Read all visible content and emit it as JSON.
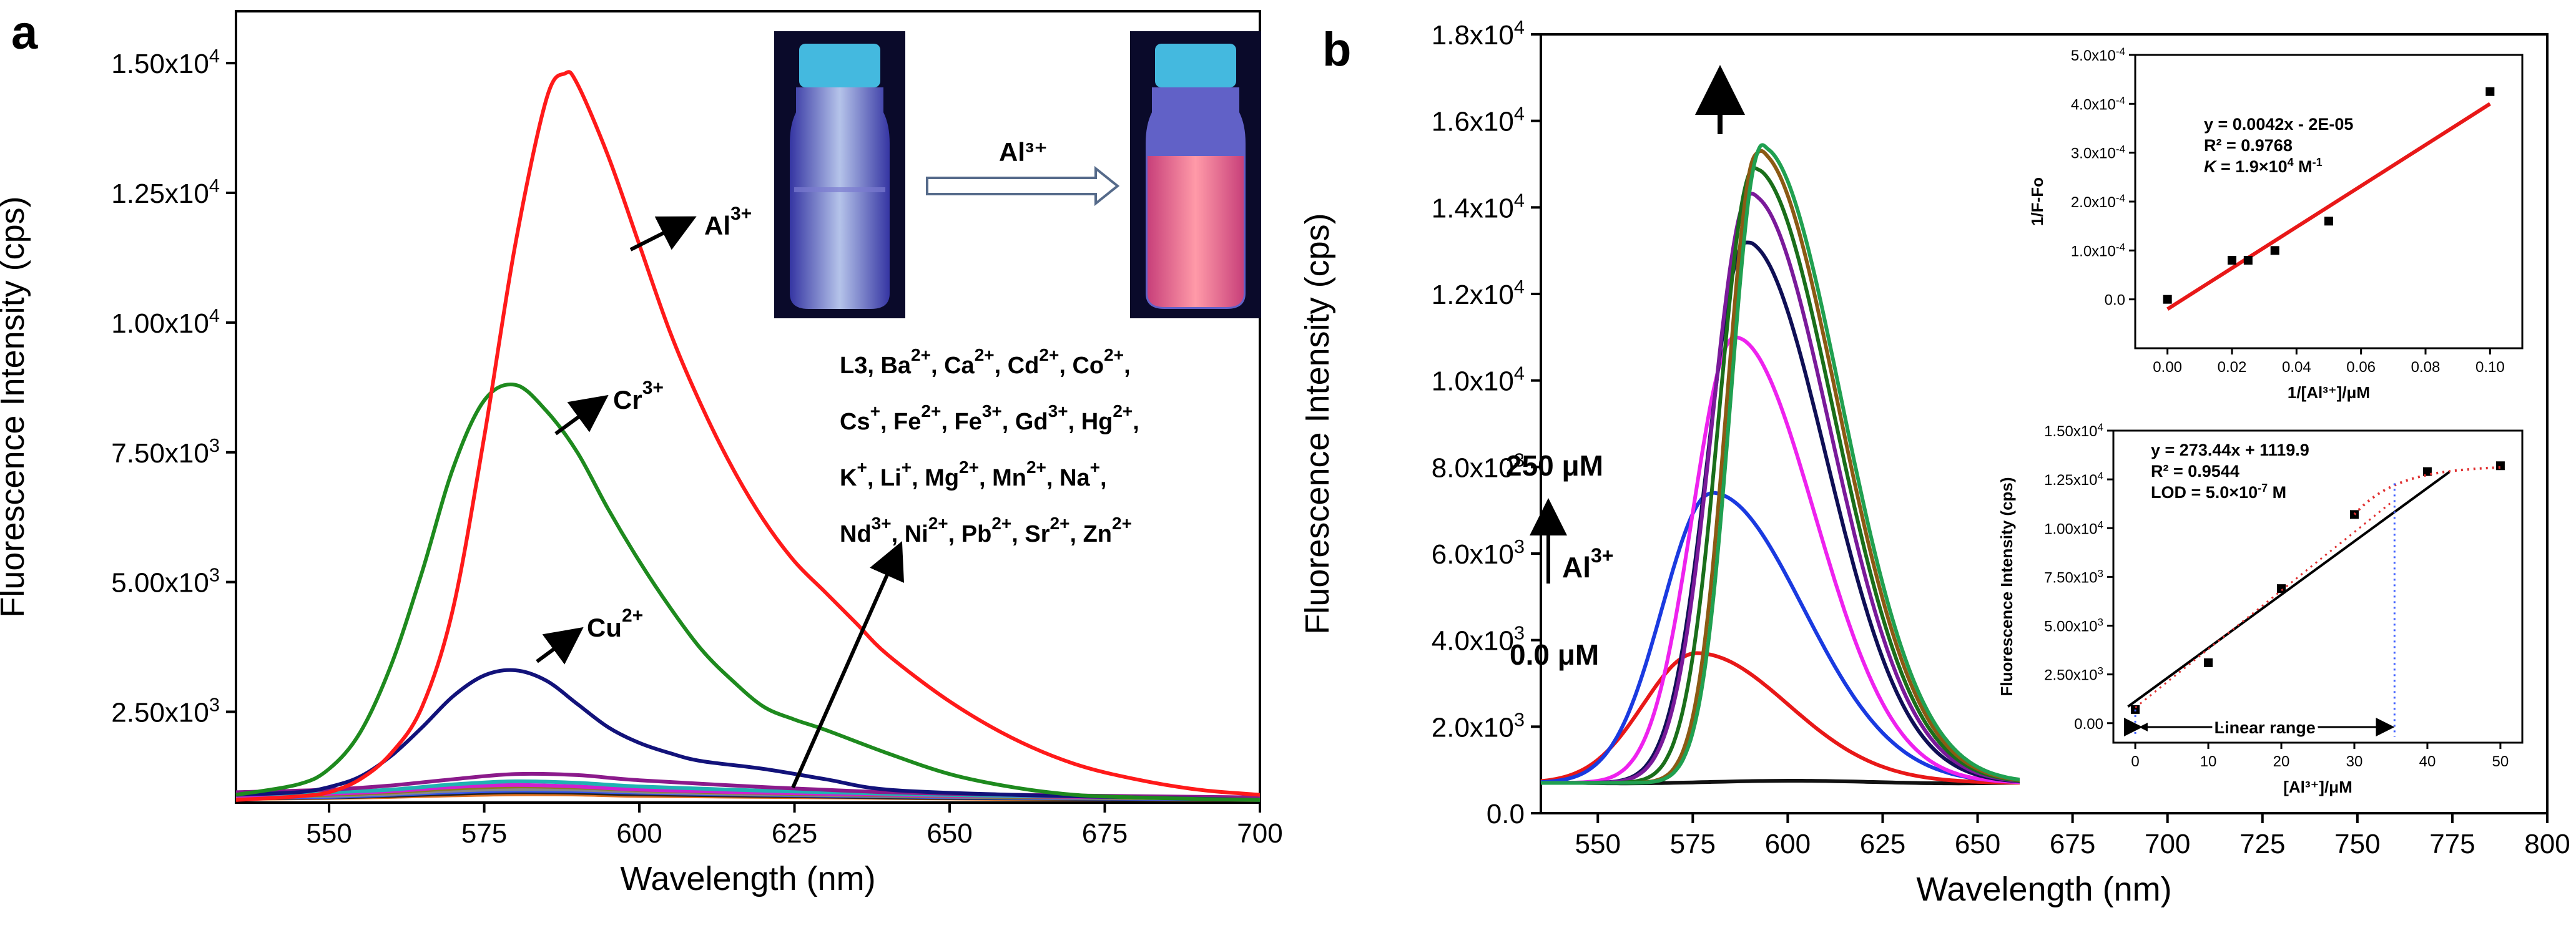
{
  "panel_a": {
    "letter": "a",
    "cuvette_label": "Al³⁺",
    "curve_labels": [
      {
        "ion": "Al",
        "charge": "3+"
      },
      {
        "ion": "Cr",
        "charge": "3+"
      },
      {
        "ion": "Cu",
        "charge": "2+"
      }
    ],
    "ion_list": [
      [
        [
          "L3, Ba",
          ""
        ],
        [
          "2+",
          ""
        ],
        [
          ", Ca",
          ""
        ],
        [
          "2+",
          ""
        ],
        [
          ", Cd",
          ""
        ],
        [
          "2+",
          ""
        ],
        [
          ", Co",
          ""
        ],
        [
          "2+",
          ""
        ],
        [
          ",",
          ""
        ]
      ],
      [
        [
          "Cs",
          ""
        ],
        [
          "+",
          ""
        ],
        [
          ", Fe",
          ""
        ],
        [
          "2+",
          ""
        ],
        [
          ", Fe",
          ""
        ],
        [
          "3+",
          ""
        ],
        [
          ", Gd",
          ""
        ],
        [
          "3+",
          ""
        ],
        [
          ", Hg",
          ""
        ],
        [
          "2+",
          ""
        ],
        [
          ",",
          ""
        ]
      ],
      [
        [
          "K",
          ""
        ],
        [
          "+",
          ""
        ],
        [
          ", Li",
          ""
        ],
        [
          "+",
          ""
        ],
        [
          ", Mg",
          ""
        ],
        [
          "2+",
          ""
        ],
        [
          ", Mn",
          ""
        ],
        [
          "2+",
          ""
        ],
        [
          ", Na",
          ""
        ],
        [
          "+",
          ""
        ],
        [
          ",",
          ""
        ]
      ],
      [
        [
          "Nd",
          ""
        ],
        [
          "3+",
          ""
        ],
        [
          ", Ni",
          ""
        ],
        [
          "2+",
          ""
        ],
        [
          ", Pb",
          ""
        ],
        [
          "2+",
          ""
        ],
        [
          ", Sr",
          ""
        ],
        [
          "2+",
          ""
        ],
        [
          ", Zn",
          ""
        ],
        [
          "2+",
          ""
        ]
      ]
    ]
  },
  "panel_b": {
    "letter": "b",
    "label_high": "250 μM",
    "label_low": "0.0 μM",
    "label_ion": "Al",
    "label_ion_charge": "3+"
  },
  "chart_data": [
    {
      "type": "line",
      "id": "panel-a",
      "title": "",
      "xlabel": "Wavelength (nm)",
      "ylabel": "Fluorescence Intensity (cps)",
      "xlim": [
        535,
        700
      ],
      "ylim": [
        750,
        16000
      ],
      "xticks": [
        550,
        575,
        600,
        625,
        650,
        675,
        700
      ],
      "yticks": [
        {
          "value": 2500,
          "label": "2.50x10",
          "exp": "3"
        },
        {
          "value": 5000,
          "label": "5.00x10",
          "exp": "3"
        },
        {
          "value": 7500,
          "label": "7.50x10",
          "exp": "3"
        },
        {
          "value": 10000,
          "label": "1.00x10",
          "exp": "4"
        },
        {
          "value": 12500,
          "label": "1.25x10",
          "exp": "4"
        },
        {
          "value": 15000,
          "label": "1.50x10",
          "exp": "4"
        }
      ],
      "series": [
        {
          "name": "Al3+",
          "color": "#ff1a1a",
          "x": [
            535,
            545,
            550,
            555,
            560,
            565,
            570,
            575,
            580,
            585,
            588,
            590,
            595,
            600,
            605,
            610,
            615,
            620,
            625,
            630,
            635,
            640,
            650,
            660,
            670,
            680,
            690,
            700
          ],
          "y": [
            800,
            870,
            950,
            1200,
            1700,
            2600,
            4500,
            7800,
            11500,
            14300,
            14800,
            14600,
            13200,
            11500,
            9800,
            8400,
            7200,
            6200,
            5400,
            4800,
            4200,
            3600,
            2700,
            2000,
            1500,
            1200,
            1000,
            900
          ]
        },
        {
          "name": "Cr3+",
          "color": "#1e8a1e",
          "x": [
            535,
            545,
            550,
            555,
            560,
            565,
            570,
            575,
            580,
            585,
            590,
            595,
            600,
            605,
            610,
            615,
            620,
            625,
            630,
            640,
            650,
            660,
            670,
            680,
            690,
            700
          ],
          "y": [
            900,
            1100,
            1400,
            2100,
            3400,
            5200,
            7200,
            8500,
            8800,
            8300,
            7500,
            6400,
            5400,
            4500,
            3700,
            3100,
            2600,
            2350,
            2150,
            1700,
            1300,
            1050,
            900,
            850,
            820,
            800
          ]
        },
        {
          "name": "Cu2+",
          "color": "#12127a",
          "x": [
            535,
            545,
            550,
            555,
            560,
            565,
            570,
            575,
            580,
            585,
            590,
            595,
            600,
            605,
            610,
            620,
            630,
            640,
            660,
            680,
            700
          ],
          "y": [
            900,
            950,
            1050,
            1250,
            1650,
            2200,
            2800,
            3200,
            3300,
            3100,
            2650,
            2200,
            1900,
            1700,
            1550,
            1400,
            1200,
            1000,
            900,
            850,
            800
          ]
        },
        {
          "name": "Purple",
          "color": "#8b1a8b",
          "x": [
            535,
            550,
            560,
            570,
            580,
            590,
            600,
            620,
            640,
            660,
            700
          ],
          "y": [
            950,
            1000,
            1080,
            1200,
            1300,
            1280,
            1180,
            1050,
            950,
            900,
            850
          ]
        },
        {
          "name": "Cyan",
          "color": "#20b2b2",
          "x": [
            535,
            550,
            560,
            570,
            580,
            590,
            600,
            620,
            640,
            660,
            700
          ],
          "y": [
            900,
            950,
            1000,
            1100,
            1160,
            1130,
            1060,
            980,
            920,
            880,
            850
          ]
        },
        {
          "name": "Magenta",
          "color": "#d020d0",
          "x": [
            535,
            550,
            560,
            570,
            580,
            590,
            600,
            620,
            640,
            660,
            700
          ],
          "y": [
            880,
            920,
            970,
            1050,
            1090,
            1060,
            1000,
            940,
            900,
            870,
            840
          ]
        },
        {
          "name": "Olive",
          "color": "#8a7a20",
          "x": [
            535,
            550,
            560,
            570,
            580,
            590,
            600,
            620,
            640,
            660,
            700
          ],
          "y": [
            860,
            900,
            950,
            1020,
            1060,
            1040,
            990,
            930,
            890,
            860,
            830
          ]
        },
        {
          "name": "Grey",
          "color": "#888888",
          "x": [
            535,
            550,
            560,
            570,
            580,
            590,
            600,
            620,
            640,
            660,
            700
          ],
          "y": [
            850,
            880,
            920,
            980,
            1010,
            1000,
            960,
            910,
            880,
            850,
            820
          ]
        },
        {
          "name": "Blue",
          "color": "#3355ee",
          "x": [
            535,
            550,
            560,
            570,
            580,
            590,
            600,
            620,
            640,
            660,
            700
          ],
          "y": [
            840,
            860,
            900,
            950,
            980,
            970,
            940,
            900,
            870,
            840,
            810
          ]
        },
        {
          "name": "Black",
          "color": "#222222",
          "x": [
            535,
            550,
            560,
            570,
            580,
            590,
            600,
            620,
            640,
            660,
            700
          ],
          "y": [
            830,
            850,
            880,
            920,
            950,
            940,
            910,
            880,
            850,
            830,
            800
          ]
        },
        {
          "name": "Orange",
          "color": "#e07020",
          "x": [
            535,
            550,
            560,
            570,
            580,
            590,
            600,
            620,
            640,
            660,
            700
          ],
          "y": [
            820,
            840,
            860,
            890,
            910,
            905,
            880,
            860,
            840,
            820,
            800
          ]
        }
      ]
    },
    {
      "type": "line",
      "id": "panel-b",
      "title": "",
      "xlabel": "Wavelength (nm)",
      "ylabel": "Fluorescence Intensity (cps)",
      "xlim": [
        535,
        800
      ],
      "ylim": [
        0,
        18000
      ],
      "xticks": [
        550,
        575,
        600,
        625,
        650,
        675,
        700,
        725,
        750,
        775,
        800
      ],
      "yticks": [
        {
          "value": 0,
          "label": "0.0",
          "exp": ""
        },
        {
          "value": 2000,
          "label": "2.0x10",
          "exp": "3"
        },
        {
          "value": 4000,
          "label": "4.0x10",
          "exp": "3"
        },
        {
          "value": 6000,
          "label": "6.0x10",
          "exp": "3"
        },
        {
          "value": 8000,
          "label": "8.0x10",
          "exp": "3"
        },
        {
          "value": 10000,
          "label": "1.0x10",
          "exp": "4"
        },
        {
          "value": 12000,
          "label": "1.2x10",
          "exp": "4"
        },
        {
          "value": 14000,
          "label": "1.4x10",
          "exp": "4"
        },
        {
          "value": 16000,
          "label": "1.6x10",
          "exp": "4"
        },
        {
          "value": 18000,
          "label": "1.8x10",
          "exp": "4"
        }
      ],
      "peaks": [
        {
          "name": "0 μM",
          "color": "#111111",
          "center": 580,
          "amp": 0,
          "wl": 20,
          "wr": 40,
          "base": 700
        },
        {
          "name": "c1",
          "color": "#e81818",
          "center": 576,
          "amp": 3000,
          "wl": 14,
          "wr": 24,
          "base": 700
        },
        {
          "name": "c2",
          "color": "#1a3ae0",
          "center": 580,
          "amp": 6700,
          "wl": 13,
          "wr": 24,
          "base": 700
        },
        {
          "name": "c3",
          "color": "#ee22ee",
          "center": 586,
          "amp": 10300,
          "wl": 11,
          "wr": 21,
          "base": 700
        },
        {
          "name": "c4",
          "color": "#0f0f55",
          "center": 589,
          "amp": 12500,
          "wl": 10,
          "wr": 21,
          "base": 700
        },
        {
          "name": "c5",
          "color": "#7a1a9a",
          "center": 590,
          "amp": 13600,
          "wl": 10,
          "wr": 21,
          "base": 700
        },
        {
          "name": "c6",
          "color": "#1a6e1a",
          "center": 591,
          "amp": 14200,
          "wl": 9,
          "wr": 21,
          "base": 700
        },
        {
          "name": "c7",
          "color": "#8b5a14",
          "center": 592,
          "amp": 14600,
          "wl": 8,
          "wr": 21,
          "base": 700
        },
        {
          "name": "c8",
          "color": "#20a050",
          "center": 593,
          "amp": 14700,
          "wl": 8,
          "wr": 21,
          "base": 700
        }
      ]
    },
    {
      "type": "scatter",
      "id": "inset-b1",
      "xlabel": "1/[Al³⁺]/μM",
      "ylabel": "1/F-Fo",
      "xlim": [
        -0.01,
        0.11
      ],
      "ylim": [
        -0.0001,
        0.0005
      ],
      "xticks": [
        0.0,
        0.02,
        0.04,
        0.06,
        0.08,
        0.1
      ],
      "xticklabels": [
        "0.00",
        "0.02",
        "0.04",
        "0.06",
        "0.08",
        "0.10"
      ],
      "yticks": [
        0,
        0.0001,
        0.0002,
        0.0003,
        0.0004,
        0.0005
      ],
      "yticklabels": [
        "0.0",
        "1.0x10",
        "2.0x10",
        "3.0x10",
        "4.0x10",
        "5.0x10"
      ],
      "ytick_exp": [
        "",
        "-4",
        "-4",
        "-4",
        "-4",
        "-4"
      ],
      "points": {
        "x": [
          0.0,
          0.02,
          0.025,
          0.0333,
          0.05,
          0.1
        ],
        "y": [
          0.0,
          8e-05,
          8e-05,
          0.0001,
          0.00016,
          0.000425
        ]
      },
      "fit": {
        "slope": 0.0042,
        "intercept": -2e-05,
        "x_range": [
          0.0,
          0.1
        ],
        "color": "#e81818"
      },
      "equation_lines": [
        "y = 0.0042x - 2E-05",
        "R² = 0.9768"
      ],
      "k_label": "K",
      "k_value": " = 1.9×10",
      "k_exp": "4",
      "k_unit": " M",
      "k_unit_exp": "-1"
    },
    {
      "type": "scatter",
      "id": "inset-b2",
      "xlabel": "[Al³⁺]/μM",
      "ylabel": "Fluorescence Intensity (cps)",
      "xlim": [
        -3,
        53
      ],
      "ylim": [
        -1000,
        15000
      ],
      "xticks": [
        0,
        10,
        20,
        30,
        40,
        50
      ],
      "xticklabels": [
        "0",
        "10",
        "20",
        "30",
        "40",
        "50"
      ],
      "yticks": [
        0,
        2500,
        5000,
        7500,
        10000,
        12500,
        15000
      ],
      "yticklabels": [
        "0.00",
        "2.50x10",
        "5.00x10",
        "7.50x10",
        "1.00x10",
        "1.25x10",
        "1.50x10"
      ],
      "ytick_exp": [
        "",
        "3",
        "3",
        "3",
        "4",
        "4",
        "4"
      ],
      "points": {
        "x": [
          0,
          10,
          20,
          30,
          40,
          50
        ],
        "y": [
          700,
          3100,
          6900,
          10700,
          12900,
          13200
        ]
      },
      "fit": {
        "slope": 273.44,
        "intercept": 1119.9,
        "x_range": [
          -1,
          43
        ],
        "color": "#000000"
      },
      "equation_lines": [
        "y = 273.44x + 1119.9",
        "R² = 0.9544",
        "LOD = 5.0×10"
      ],
      "lod_exp": "-7",
      "lod_unit": " M",
      "linear_range_label": "Linear range",
      "linear_range_end": 35.5
    }
  ]
}
